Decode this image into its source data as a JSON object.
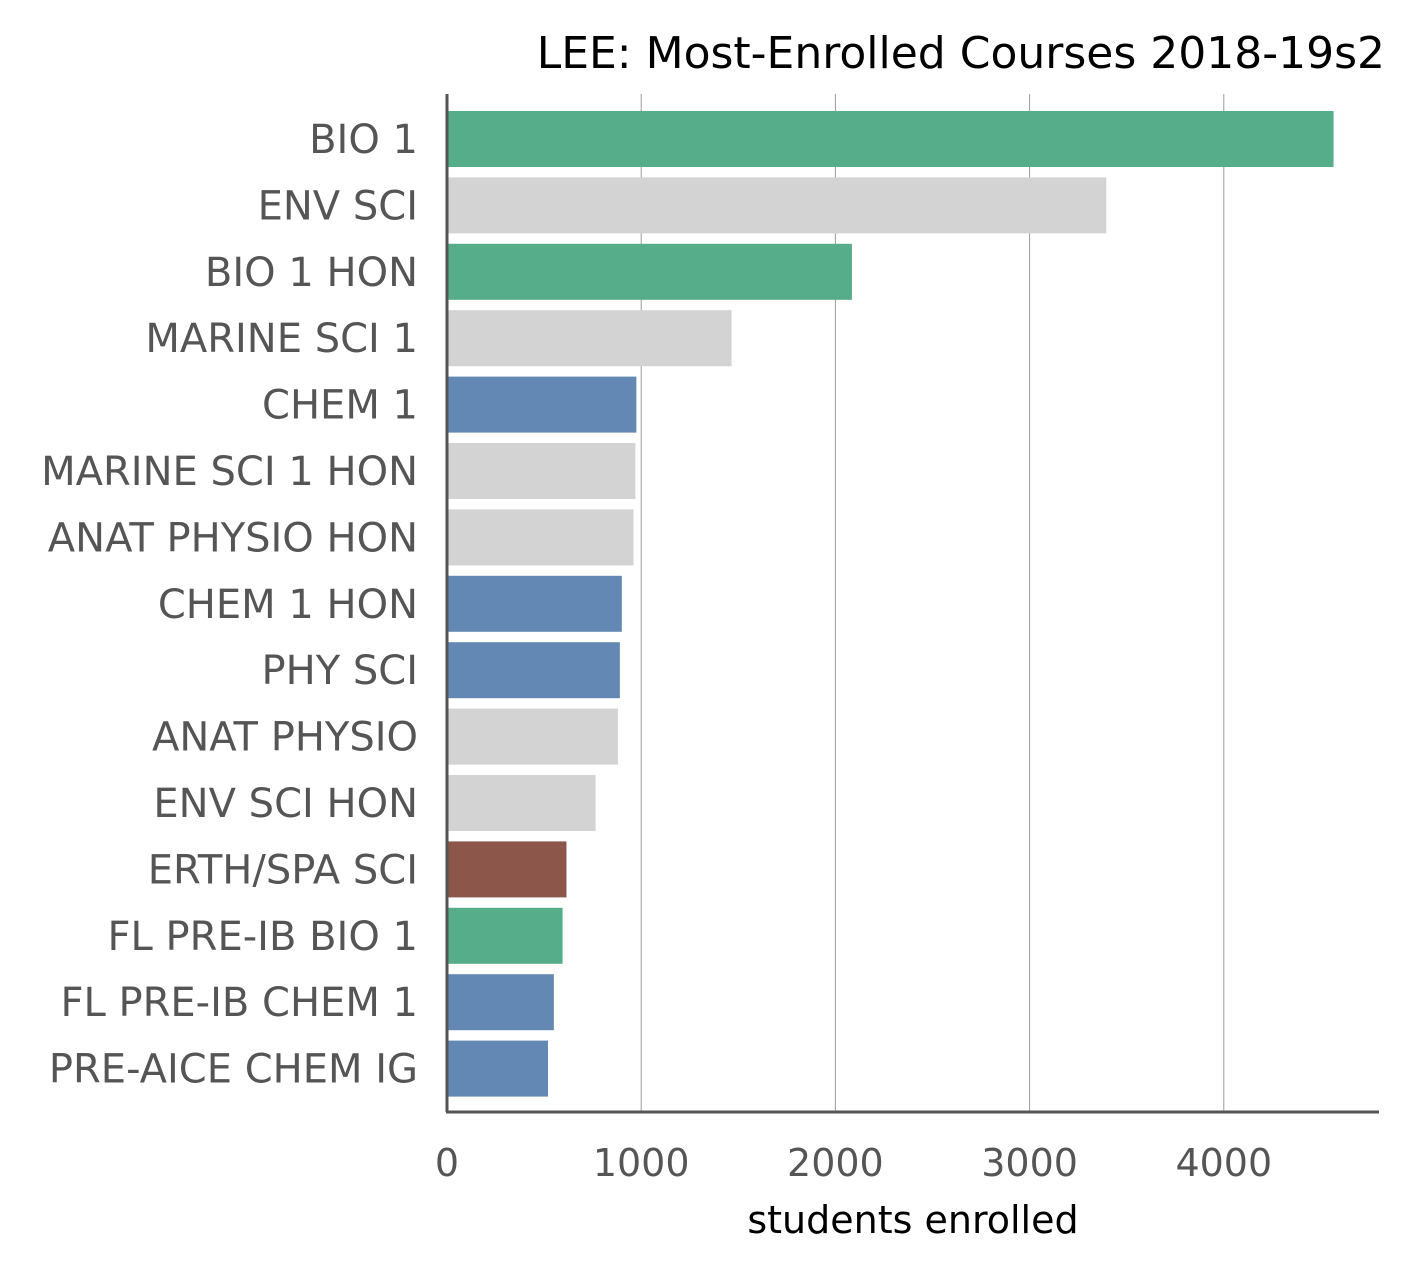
{
  "chart_data": {
    "type": "bar",
    "orientation": "horizontal",
    "title": "LEE: Most-Enrolled Courses 2018-19s2",
    "xlabel": "students enrolled",
    "ylabel": "",
    "xlim": [
      0,
      4800
    ],
    "xticks": [
      0,
      1000,
      2000,
      3000,
      4000
    ],
    "grid": "vertical",
    "categories": [
      "BIO 1",
      "ENV SCI",
      "BIO 1 HON",
      "MARINE SCI 1",
      "CHEM 1",
      "MARINE SCI 1 HON",
      "ANAT PHYSIO HON",
      "CHEM 1 HON",
      "PHY SCI",
      "ANAT PHYSIO",
      "ENV SCI HON",
      "ERTH/SPA SCI",
      "FL PRE-IB BIO 1",
      "FL PRE-IB CHEM 1",
      "PRE-AICE CHEM IG"
    ],
    "values": [
      4560,
      3390,
      2080,
      1460,
      970,
      965,
      955,
      895,
      885,
      875,
      760,
      610,
      590,
      545,
      515
    ],
    "bar_colors": [
      "#55ad89",
      "#d3d3d3",
      "#55ad89",
      "#d3d3d3",
      "#6388b4",
      "#d3d3d3",
      "#d3d3d3",
      "#6388b4",
      "#6388b4",
      "#d3d3d3",
      "#d3d3d3",
      "#8c564b",
      "#55ad89",
      "#6388b4",
      "#6388b4"
    ]
  }
}
